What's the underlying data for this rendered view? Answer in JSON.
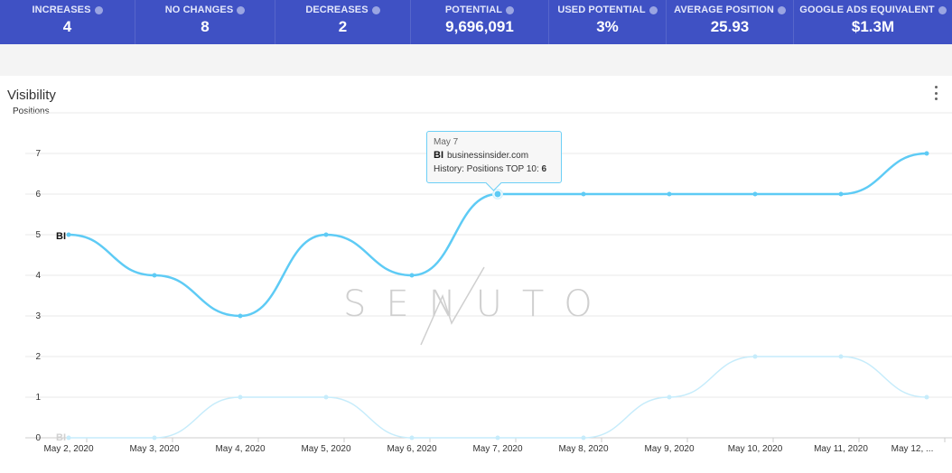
{
  "stats": [
    {
      "label": "INCREASES",
      "value": "4"
    },
    {
      "label": "NO CHANGES",
      "value": "8"
    },
    {
      "label": "DECREASES",
      "value": "2"
    },
    {
      "label": "POTENTIAL",
      "value": "9,696,091"
    },
    {
      "label": "USED POTENTIAL",
      "value": "3%"
    },
    {
      "label": "AVERAGE POSITION",
      "value": "25.93"
    },
    {
      "label": "GOOGLE ADS EQUIVALENT",
      "value": "$1.3M"
    }
  ],
  "panel": {
    "title": "Visibility",
    "menu_icon": "more-vertical-icon",
    "watermark": "SENUTO"
  },
  "tooltip": {
    "date": "May 7",
    "badge": "BI",
    "domain": "businessinsider.com",
    "history_label": "History: Positions TOP 10:",
    "history_value": "6"
  },
  "colors": {
    "header_bg": "#3f51c4",
    "series_main": "#5ecbf5",
    "series_faded": "#c6ecfb"
  },
  "chart_data": {
    "type": "line",
    "ylabel": "Positions",
    "categories": [
      "May 2, 2020",
      "May 3, 2020",
      "May 4, 2020",
      "May 5, 2020",
      "May 6, 2020",
      "May 7, 2020",
      "May 8, 2020",
      "May 9, 2020",
      "May 10, 2020",
      "May 11, 2020",
      "May 12, ..."
    ],
    "yticks": [
      "0",
      "1",
      "2",
      "3",
      "4",
      "5",
      "6",
      "7"
    ],
    "ylim": [
      0,
      7
    ],
    "grid": true,
    "series": [
      {
        "name": "BI",
        "values": [
          5,
          4,
          3,
          5,
          4,
          6,
          6,
          6,
          6,
          6,
          7
        ]
      },
      {
        "name": "BI",
        "values": [
          0,
          0,
          1,
          1,
          0,
          0,
          0,
          1,
          2,
          2,
          1
        ]
      }
    ],
    "highlighted_index": 5
  }
}
